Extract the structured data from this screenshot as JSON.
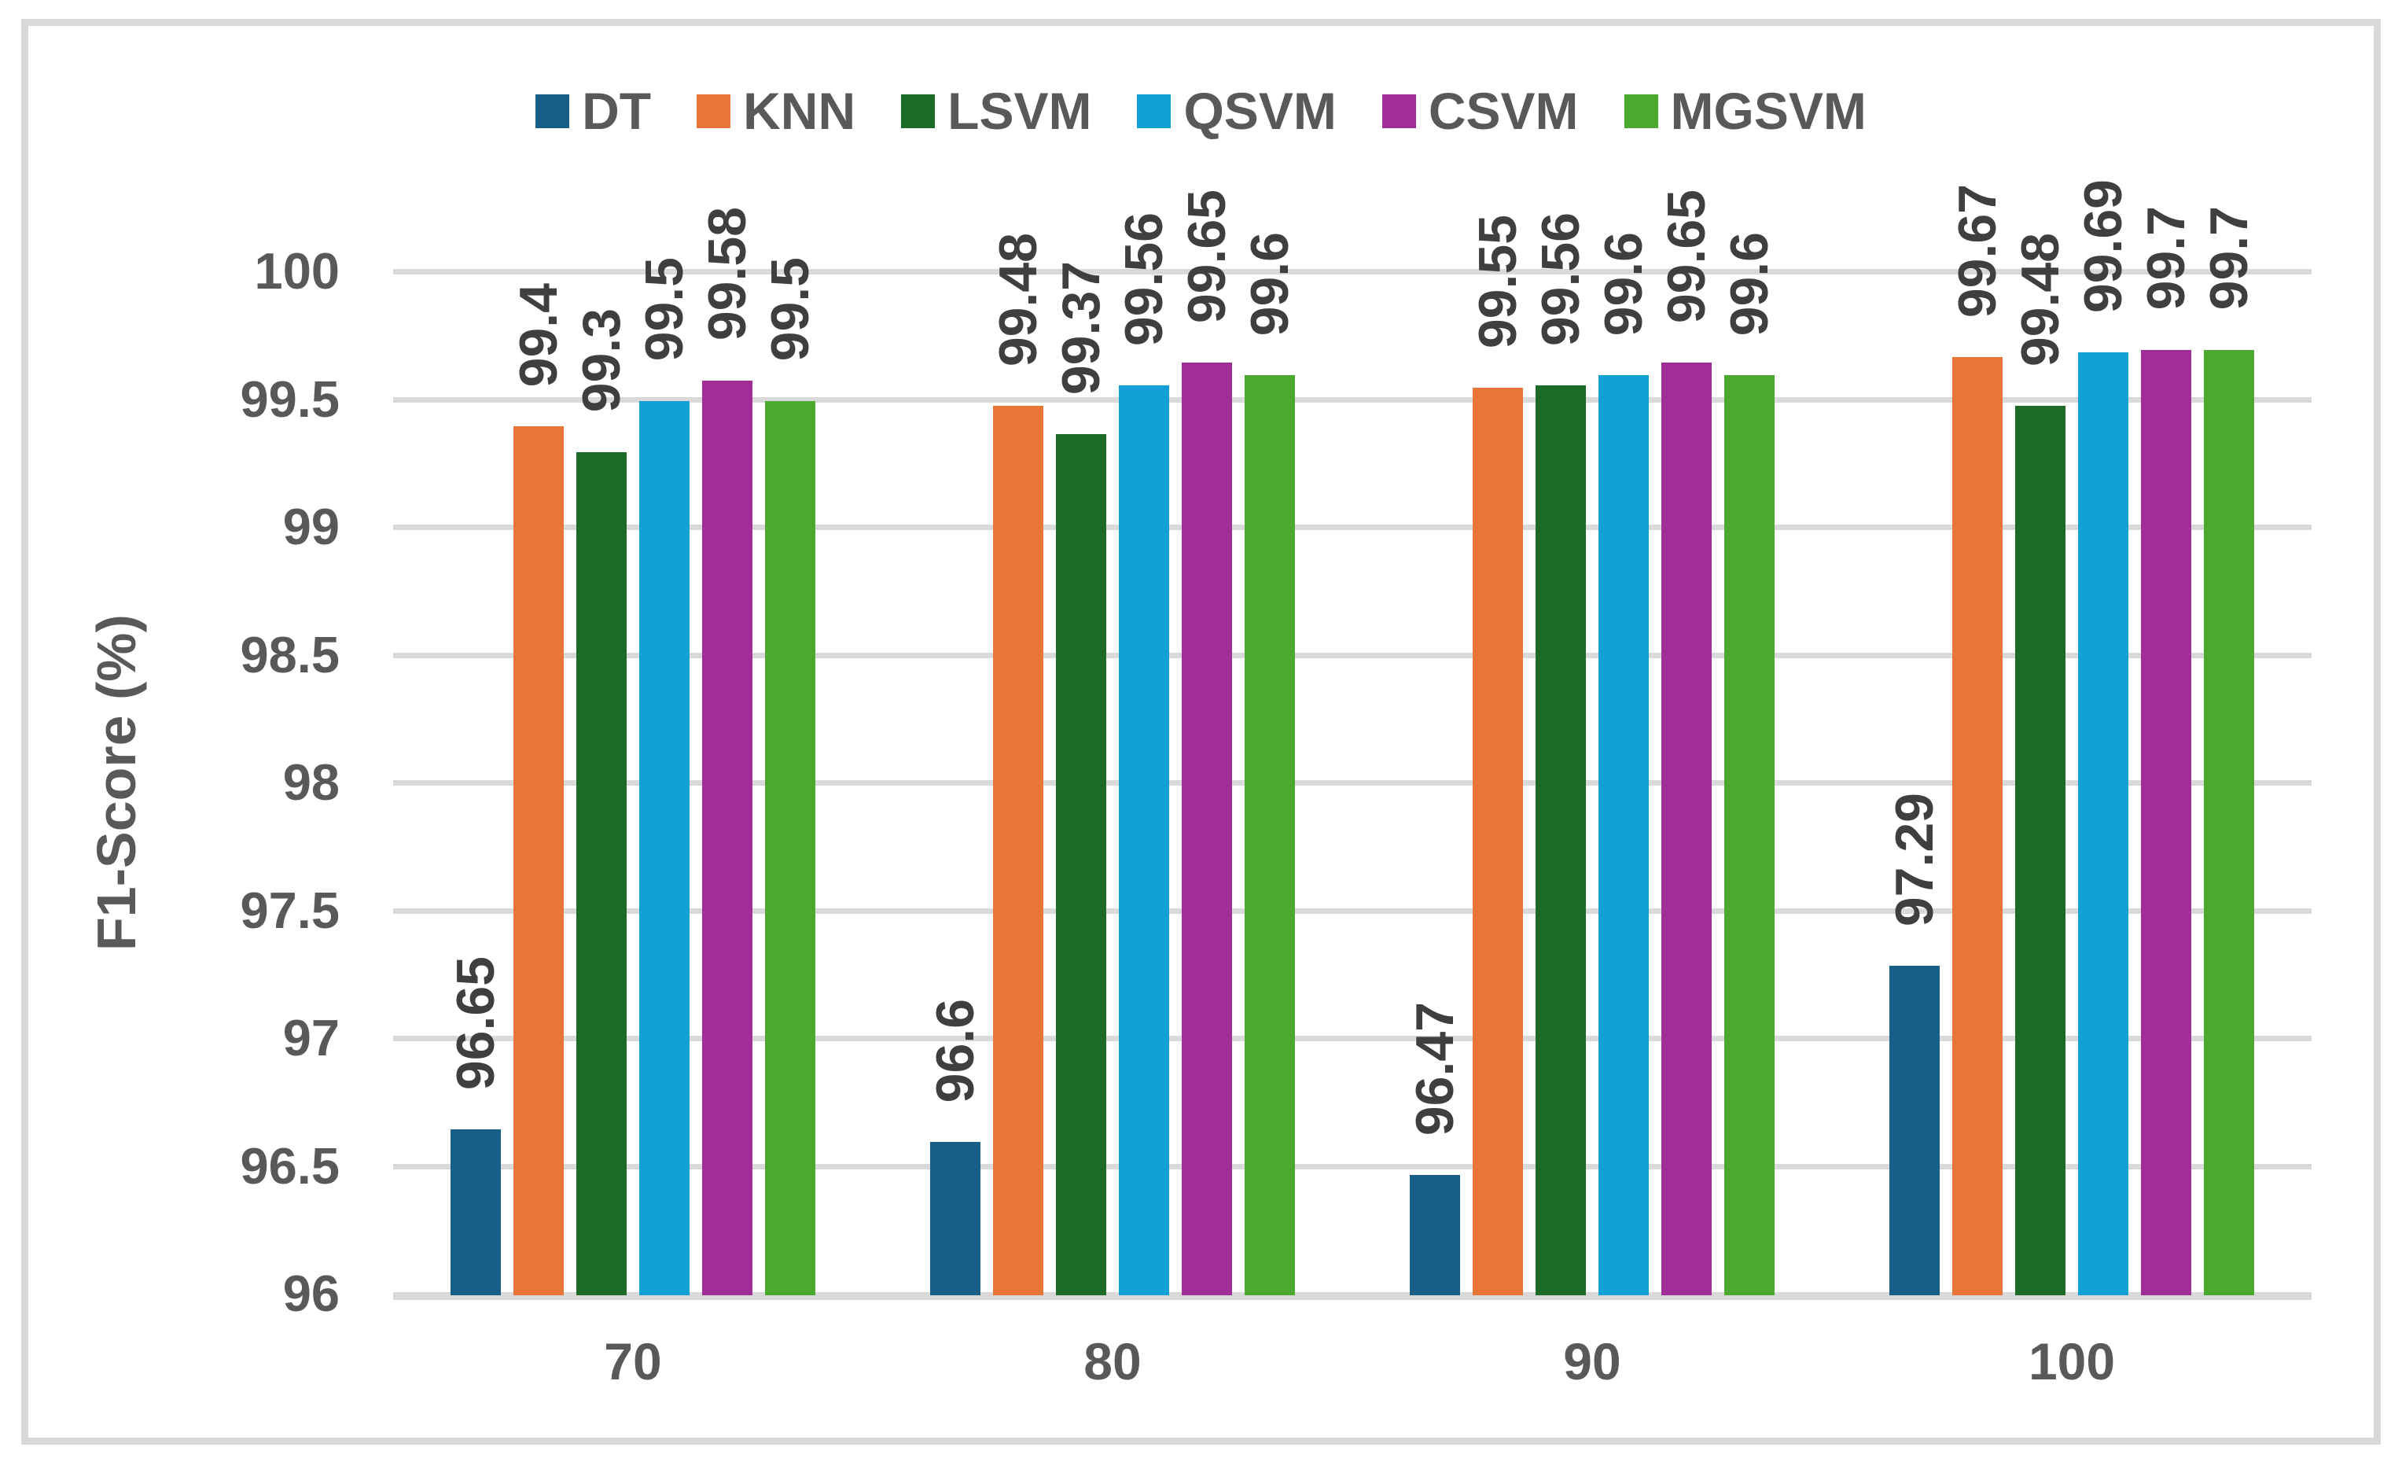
{
  "chart_data": {
    "type": "bar",
    "title": "",
    "xlabel": "",
    "ylabel": "F1-Score (%)",
    "categories": [
      "70",
      "80",
      "90",
      "100"
    ],
    "series": [
      {
        "name": "DT",
        "color": "#175F86",
        "values": [
          96.65,
          96.6,
          96.47,
          97.29
        ]
      },
      {
        "name": "KNN",
        "color": "#E87637",
        "values": [
          99.4,
          99.48,
          99.55,
          99.67
        ]
      },
      {
        "name": "LSVM",
        "color": "#1B6B26",
        "values": [
          99.3,
          99.37,
          99.56,
          99.48
        ]
      },
      {
        "name": "QSVM",
        "color": "#12A0D6",
        "values": [
          99.5,
          99.56,
          99.6,
          99.69
        ]
      },
      {
        "name": "CSVM",
        "color": "#A12D96",
        "values": [
          99.58,
          99.65,
          99.65,
          99.7
        ]
      },
      {
        "name": "MGSVM",
        "color": "#4BA930",
        "values": [
          99.5,
          99.6,
          99.6,
          99.7
        ]
      }
    ],
    "ylim": [
      96,
      100
    ],
    "yticks": [
      100,
      99.5,
      99,
      98.5,
      98,
      97.5,
      97,
      96.5,
      96
    ],
    "grid": true,
    "gridline_color": "#D9D9D9",
    "axis_text_color": "#595959",
    "value_label_color": "#3F3F3F",
    "legend_position": "top",
    "value_labels_rotated_90": true
  }
}
